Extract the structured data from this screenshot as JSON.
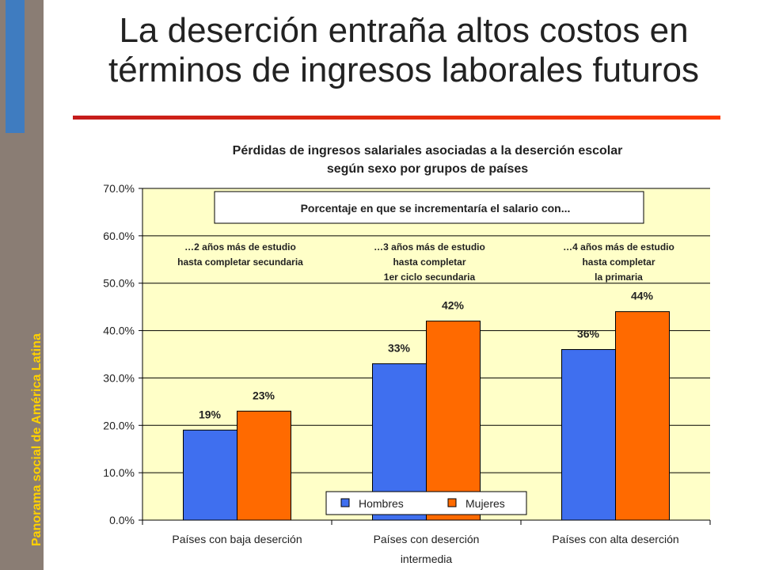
{
  "sidebar": {
    "text": "Panorama social de América Latina"
  },
  "slide": {
    "title_line1": "La deserción entraña altos costos en",
    "title_line2": "términos de ingresos laborales futuros"
  },
  "colors": {
    "plot_background": "#ffffc8",
    "hombres": "#3f6fef",
    "mujeres": "#ff6a00",
    "rule_left": "#c41c1c",
    "rule_right": "#ff3b00"
  },
  "chart_data": {
    "type": "bar",
    "title_line1": "Pérdidas de ingresos salariales asociadas a la deserción escolar",
    "title_line2": "según sexo por grupos de países",
    "categories": [
      [
        "Países con baja deserción"
      ],
      [
        "Países con deserción",
        "intermedia"
      ],
      [
        "Países con alta deserción"
      ]
    ],
    "series": [
      {
        "name": "Hombres",
        "values": [
          19,
          33,
          36
        ],
        "labels": [
          "19%",
          "33%",
          "36%"
        ],
        "color": "#3f6fef"
      },
      {
        "name": "Mujeres",
        "values": [
          23,
          42,
          44
        ],
        "labels": [
          "23%",
          "42%",
          "44%"
        ],
        "color": "#ff6a00"
      }
    ],
    "ylim": [
      0,
      70
    ],
    "yticks": [
      "0.0%",
      "10.0%",
      "20.0%",
      "30.0%",
      "40.0%",
      "50.0%",
      "60.0%",
      "70.0%"
    ],
    "grid": true,
    "legend_position": "bottom-center",
    "annotation_box": "Porcentaje en que se incrementaría el salario con...",
    "group_notes": [
      [
        "…2 años más de estudio",
        "hasta completar secundaria"
      ],
      [
        "…3 años más de estudio",
        "hasta completar",
        "1er ciclo secundaria"
      ],
      [
        "…4 años más de estudio",
        "hasta completar",
        "la primaria"
      ]
    ]
  }
}
